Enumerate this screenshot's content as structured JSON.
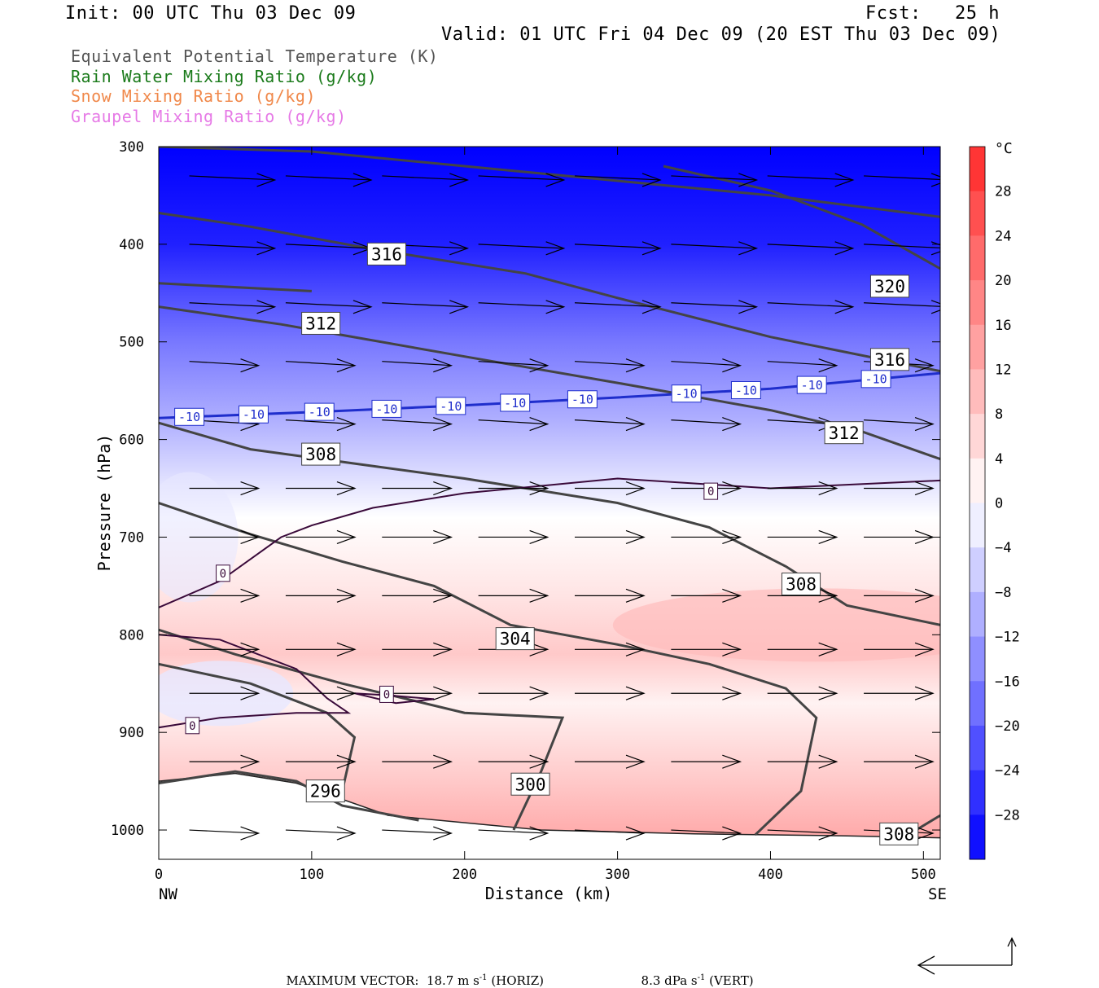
{
  "header": {
    "init": "Init: 00 UTC Thu 03 Dec 09",
    "fcst": "Fcst:   25 h",
    "valid": "Valid: 01 UTC Fri 04 Dec 09 (20 EST Thu 03 Dec 09)"
  },
  "legend": [
    {
      "label": "Equivalent Potential Temperature (K)",
      "color": "#555555"
    },
    {
      "label": "Rain Water Mixing Ratio (g/kg)",
      "color": "#1a7a1a"
    },
    {
      "label": "Snow Mixing Ratio (g/kg)",
      "color": "#f0884a"
    },
    {
      "label": "Graupel Mixing Ratio (g/kg)",
      "color": "#e67ae6"
    }
  ],
  "footer": {
    "max_vector_label": "MAXIMUM VECTOR:",
    "horiz": "18.7 m s",
    "horiz_unit": "-1",
    "horiz_tag": " (HORIZ)",
    "vert": "8.3 dPa s",
    "vert_unit": "-1",
    "vert_tag": " (VERT)"
  },
  "chart_data": {
    "type": "cross-section",
    "xlabel": "Distance (km)",
    "ylabel": "Pressure (hPa)",
    "xlim": [
      0,
      511
    ],
    "ylim": [
      1030,
      300
    ],
    "x_ticks": [
      0,
      100,
      200,
      300,
      400,
      500
    ],
    "y_ticks": [
      300,
      400,
      500,
      600,
      700,
      800,
      900,
      1000
    ],
    "x_end_labels": {
      "left": "NW",
      "right": "SE"
    },
    "colorbar": {
      "unit": "°C",
      "ticks": [
        28,
        24,
        20,
        16,
        12,
        8,
        4,
        0,
        -4,
        -8,
        -12,
        -16,
        -20,
        -24,
        -28
      ],
      "range": [
        -32,
        32
      ]
    },
    "temperature_field": {
      "description_levels": [
        {
          "p": 300,
          "t": -34
        },
        {
          "p": 400,
          "t": -28
        },
        {
          "p": 500,
          "t": -17
        },
        {
          "p": 580,
          "t": -10
        },
        {
          "p": 640,
          "t": -4
        },
        {
          "p": 680,
          "t": 0
        },
        {
          "p": 760,
          "t": 4
        },
        {
          "p": 820,
          "t": 8
        },
        {
          "p": 870,
          "t": 2
        },
        {
          "p": 950,
          "t": 8
        },
        {
          "p": 1010,
          "t": 13
        }
      ]
    },
    "theta_e_contours": [
      {
        "label": "320",
        "points": [
          [
            0,
            300
          ],
          [
            100,
            305
          ],
          [
            200,
            320
          ],
          [
            300,
            335
          ],
          [
            400,
            350
          ],
          [
            511,
            372
          ]
        ]
      },
      {
        "label": "316",
        "points": [
          [
            0,
            368
          ],
          [
            60,
            382
          ],
          [
            140,
            405
          ],
          [
            240,
            430
          ],
          [
            300,
            455
          ],
          [
            400,
            495
          ],
          [
            511,
            530
          ]
        ]
      },
      {
        "label": "320",
        "points": [
          [
            330,
            320
          ],
          [
            400,
            345
          ],
          [
            460,
            380
          ],
          [
            511,
            425
          ]
        ]
      },
      {
        "label": "312",
        "points": [
          [
            0,
            464
          ],
          [
            80,
            482
          ],
          [
            200,
            515
          ],
          [
            300,
            542
          ],
          [
            400,
            570
          ],
          [
            460,
            592
          ],
          [
            511,
            620
          ]
        ]
      },
      {
        "label": "316",
        "points": [
          [
            0,
            440
          ],
          [
            100,
            448
          ]
        ]
      },
      {
        "label": "308",
        "points": [
          [
            0,
            583
          ],
          [
            60,
            610
          ],
          [
            130,
            625
          ],
          [
            200,
            640
          ],
          [
            300,
            665
          ],
          [
            360,
            690
          ],
          [
            410,
            730
          ],
          [
            450,
            770
          ],
          [
            511,
            790
          ]
        ]
      },
      {
        "label": "304",
        "points": [
          [
            0,
            665
          ],
          [
            60,
            697
          ],
          [
            120,
            725
          ],
          [
            180,
            750
          ],
          [
            230,
            790
          ],
          [
            300,
            810
          ],
          [
            360,
            830
          ],
          [
            410,
            855
          ],
          [
            430,
            885
          ],
          [
            420,
            960
          ],
          [
            390,
            1005
          ]
        ]
      },
      {
        "label": "300",
        "points": [
          [
            0,
            795
          ],
          [
            50,
            820
          ],
          [
            120,
            850
          ],
          [
            200,
            880
          ],
          [
            264,
            885
          ],
          [
            250,
            940
          ],
          [
            232,
            1000
          ]
        ]
      },
      {
        "label": "296",
        "points": [
          [
            0,
            952
          ],
          [
            50,
            940
          ],
          [
            90,
            950
          ],
          [
            120,
            975
          ],
          [
            170,
            990
          ]
        ]
      },
      {
        "label": "296",
        "points": [
          [
            0,
            830
          ],
          [
            60,
            850
          ],
          [
            110,
            880
          ],
          [
            128,
            905
          ],
          [
            120,
            960
          ]
        ]
      },
      {
        "label": "308",
        "points": [
          [
            490,
            1005
          ],
          [
            511,
            985
          ]
        ]
      }
    ],
    "theta_e_labels": [
      {
        "text": "316",
        "x": 149,
        "p": 410
      },
      {
        "text": "312",
        "x": 106,
        "p": 481
      },
      {
        "text": "320",
        "x": 478,
        "p": 443
      },
      {
        "text": "316",
        "x": 478,
        "p": 518
      },
      {
        "text": "312",
        "x": 448,
        "p": 593
      },
      {
        "text": "308",
        "x": 106,
        "p": 615
      },
      {
        "text": "308",
        "x": 420,
        "p": 748
      },
      {
        "text": "304",
        "x": 233,
        "p": 804
      },
      {
        "text": "300",
        "x": 243,
        "p": 953
      },
      {
        "text": "296",
        "x": 109,
        "p": 960
      },
      {
        "text": "308",
        "x": 484,
        "p": 1004
      }
    ],
    "isotherm_minus10": {
      "label": "-10",
      "points": [
        [
          0,
          578
        ],
        [
          100,
          572
        ],
        [
          200,
          565
        ],
        [
          300,
          557
        ],
        [
          400,
          548
        ],
        [
          511,
          532
        ]
      ],
      "label_x": [
        20,
        62,
        105,
        149,
        191,
        233,
        277,
        345,
        384,
        427,
        469
      ]
    },
    "isotherm_zero": {
      "label": "0",
      "segments": [
        [
          [
            0,
            772
          ],
          [
            40,
            745
          ],
          [
            80,
            700
          ],
          [
            100,
            688
          ],
          [
            140,
            670
          ],
          [
            200,
            655
          ],
          [
            300,
            640
          ],
          [
            400,
            650
          ],
          [
            511,
            642
          ]
        ],
        [
          [
            0,
            800
          ],
          [
            40,
            805
          ],
          [
            90,
            835
          ],
          [
            110,
            865
          ],
          [
            124,
            880
          ],
          [
            90,
            880
          ],
          [
            40,
            885
          ],
          [
            0,
            895
          ]
        ],
        [
          [
            128,
            860
          ],
          [
            150,
            862
          ],
          [
            180,
            866
          ],
          [
            155,
            870
          ],
          [
            128,
            860
          ]
        ]
      ],
      "labels": [
        {
          "text": "0",
          "x": 361,
          "p": 653
        },
        {
          "text": "0",
          "x": 42,
          "p": 737
        },
        {
          "text": "0",
          "x": 149,
          "p": 861
        },
        {
          "text": "0",
          "x": 22,
          "p": 893
        }
      ]
    },
    "wind_vectors": [
      {
        "x": 0,
        "p": 340
      }
    ]
  }
}
